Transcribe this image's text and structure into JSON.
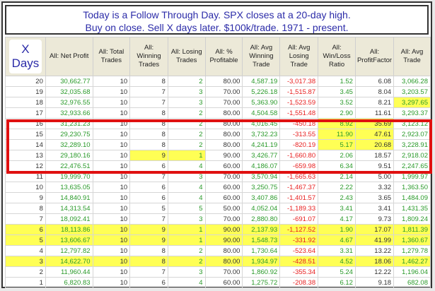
{
  "title": {
    "line1": "Today is a Follow Through Day. SPX closes at a 20-day high.",
    "line2": "Buy on close. Sell X days later. $100k/trade. 1971 - present."
  },
  "columns": [
    "X Days",
    "All: Net Profit",
    "All: Total Trades",
    "All: Winning Trades",
    "All: Losing Trades",
    "All: % Profitable",
    "All: Avg Winning Trade",
    "All: Avg Losing Trade",
    "All: Win/Loss Ratio",
    "All: ProfitFactor",
    "All: Avg Trade"
  ],
  "rows": [
    [
      "20",
      "30,662.77",
      "10",
      "8",
      "2",
      "80.00",
      "4,587.19",
      "-3,017.38",
      "1.52",
      "6.08",
      "3,066.28"
    ],
    [
      "19",
      "32,035.68",
      "10",
      "7",
      "3",
      "70.00",
      "5,226.18",
      "-1,515.87",
      "3.45",
      "8.04",
      "3,203.57"
    ],
    [
      "18",
      "32,976.55",
      "10",
      "7",
      "3",
      "70.00",
      "5,363.90",
      "-1,523.59",
      "3.52",
      "8.21",
      "3,297.65"
    ],
    [
      "17",
      "32,933.66",
      "10",
      "8",
      "2",
      "80.00",
      "4,504.58",
      "-1,551.48",
      "2.90",
      "11.61",
      "3,293.37"
    ],
    [
      "16",
      "31,231.23",
      "10",
      "8",
      "2",
      "80.00",
      "4,016.45",
      "-450.18",
      "8.92",
      "35.69",
      "3,123.12"
    ],
    [
      "15",
      "29,230.75",
      "10",
      "8",
      "2",
      "80.00",
      "3,732.23",
      "-313.55",
      "11.90",
      "47.61",
      "2,923.07"
    ],
    [
      "14",
      "32,289.10",
      "10",
      "8",
      "2",
      "80.00",
      "4,241.19",
      "-820.19",
      "5.17",
      "20.68",
      "3,228.91"
    ],
    [
      "13",
      "29,180.16",
      "10",
      "9",
      "1",
      "90.00",
      "3,426.77",
      "-1,660.80",
      "2.06",
      "18.57",
      "2,918.02"
    ],
    [
      "12",
      "22,476.51",
      "10",
      "6",
      "4",
      "60.00",
      "4,186.07",
      "-659.98",
      "6.34",
      "9.51",
      "2,247.65"
    ],
    [
      "11",
      "19,999.70",
      "10",
      "7",
      "3",
      "70.00",
      "3,570.94",
      "-1,665.63",
      "2.14",
      "5.00",
      "1,999.97"
    ],
    [
      "10",
      "13,635.05",
      "10",
      "6",
      "4",
      "60.00",
      "3,250.75",
      "-1,467.37",
      "2.22",
      "3.32",
      "1,363.50"
    ],
    [
      "9",
      "14,840.91",
      "10",
      "6",
      "4",
      "60.00",
      "3,407.86",
      "-1,401.57",
      "2.43",
      "3.65",
      "1,484.09"
    ],
    [
      "8",
      "14,313.54",
      "10",
      "5",
      "5",
      "50.00",
      "4,052.04",
      "-1,189.33",
      "3.41",
      "3.41",
      "1,431.35"
    ],
    [
      "7",
      "18,092.41",
      "10",
      "7",
      "3",
      "70.00",
      "2,880.80",
      "-691.07",
      "4.17",
      "9.73",
      "1,809.24"
    ],
    [
      "6",
      "18,113.86",
      "10",
      "9",
      "1",
      "90.00",
      "2,137.93",
      "-1,127.52",
      "1.90",
      "17.07",
      "1,811.39"
    ],
    [
      "5",
      "13,606.67",
      "10",
      "9",
      "1",
      "90.00",
      "1,548.73",
      "-331.92",
      "4.67",
      "41.99",
      "1,360.67"
    ],
    [
      "4",
      "12,797.82",
      "10",
      "8",
      "2",
      "80.00",
      "1,730.64",
      "-523.64",
      "3.31",
      "13.22",
      "1,279.78"
    ],
    [
      "3",
      "14,622.70",
      "10",
      "8",
      "2",
      "80.00",
      "1,934.97",
      "-428.51",
      "4.52",
      "18.06",
      "1,462.27"
    ],
    [
      "2",
      "11,960.44",
      "10",
      "7",
      "3",
      "70.00",
      "1,860.92",
      "-355.34",
      "5.24",
      "12.22",
      "1,196.04"
    ],
    [
      "1",
      "6,820.83",
      "10",
      "6",
      "4",
      "60.00",
      "1,275.72",
      "-208.38",
      "6.12",
      "9.18",
      "682.08"
    ]
  ],
  "highlights": {
    "full_rows": [
      "6",
      "5",
      "3"
    ],
    "cells": {
      "18": [
        10
      ],
      "16": [
        8,
        9
      ],
      "15": [
        8,
        9
      ],
      "14": [
        8,
        9
      ],
      "13": [
        3,
        4
      ]
    }
  },
  "colors": {
    "positive": "#2a9a2a",
    "negative": "#e82020",
    "highlight": "#ffff55",
    "selection_box": "#e01010"
  }
}
